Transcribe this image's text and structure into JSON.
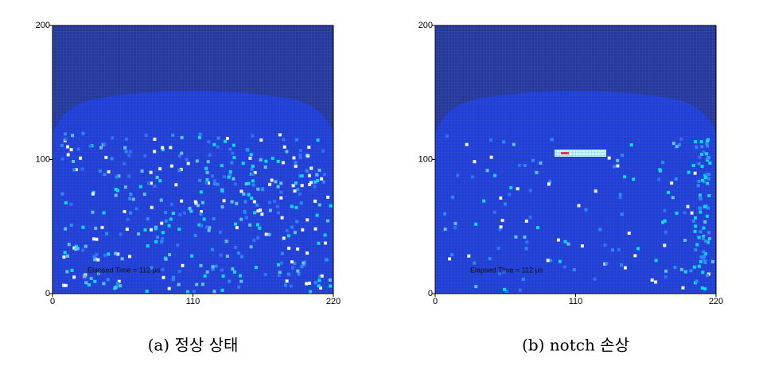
{
  "chart_data": [
    {
      "type": "heatmap",
      "caption": "(a) 정상 상태",
      "annotation": "Elapsed Time = 112 μs",
      "xlim": [
        0,
        220
      ],
      "ylim": [
        0,
        200
      ],
      "xticks": [
        0,
        110,
        220
      ],
      "yticks": [
        0,
        100,
        200
      ]
    },
    {
      "type": "heatmap",
      "caption": "(b) notch 손상",
      "annotation": "Elapsed Time = 112 μs",
      "xlim": [
        0,
        220
      ],
      "ylim": [
        0,
        200
      ],
      "xticks": [
        0,
        110,
        220
      ],
      "yticks": [
        0,
        100,
        200
      ]
    }
  ]
}
